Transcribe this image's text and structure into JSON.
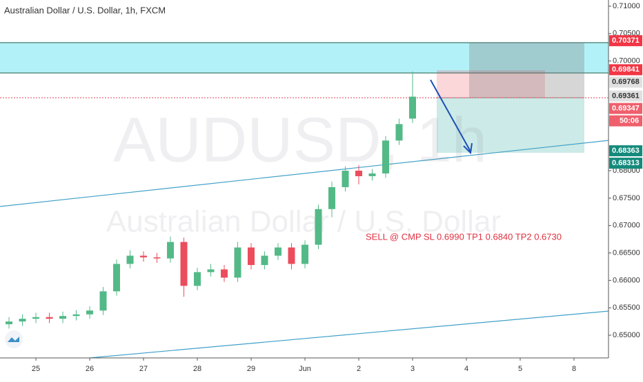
{
  "chart_data": {
    "type": "candlestick",
    "title": "Australian Dollar / U.S. Dollar, 1h, FXCM",
    "watermark": "AUDUSD, 1h",
    "watermark_subtitle": "Australian Dollar / U.S. Dollar",
    "annotation": "SELL @ CMP SL 0.6990  TP1 0.6840 TP2 0.6730",
    "countdown": "50:06",
    "up_color": "#53b987",
    "down_color": "#eb4d5c",
    "x": [
      -0.5,
      -0.25,
      0,
      0.25,
      0.5,
      0.75,
      1,
      1.25,
      1.5,
      1.75,
      2,
      2.25,
      2.5,
      2.75,
      3,
      3.25,
      3.5,
      3.75,
      4,
      4.25,
      4.5,
      4.75,
      5,
      5.25,
      5.5,
      5.75,
      6,
      6.25,
      6.5,
      6.75,
      7
    ],
    "open": [
      0.652,
      0.6525,
      0.653,
      0.6533,
      0.653,
      0.6535,
      0.6538,
      0.6545,
      0.658,
      0.663,
      0.6645,
      0.6642,
      0.664,
      0.667,
      0.659,
      0.6615,
      0.662,
      0.6605,
      0.666,
      0.6628,
      0.6645,
      0.666,
      0.663,
      0.6665,
      0.673,
      0.677,
      0.68,
      0.679,
      0.6795,
      0.6855,
      0.6895
    ],
    "high": [
      0.6533,
      0.6538,
      0.6541,
      0.6541,
      0.6543,
      0.6546,
      0.6553,
      0.6588,
      0.6638,
      0.6655,
      0.6653,
      0.665,
      0.668,
      0.6678,
      0.6623,
      0.663,
      0.6628,
      0.667,
      0.6668,
      0.6653,
      0.6668,
      0.6668,
      0.6673,
      0.6738,
      0.678,
      0.6808,
      0.681,
      0.6803,
      0.6863,
      0.6895,
      0.6981
    ],
    "low": [
      0.6512,
      0.6517,
      0.6522,
      0.6522,
      0.6522,
      0.6527,
      0.653,
      0.6537,
      0.6572,
      0.6622,
      0.6634,
      0.6632,
      0.6632,
      0.657,
      0.6582,
      0.6607,
      0.6597,
      0.6597,
      0.662,
      0.662,
      0.6637,
      0.662,
      0.6622,
      0.6657,
      0.6715,
      0.6762,
      0.6775,
      0.6782,
      0.6787,
      0.6847,
      0.6887
    ],
    "close": [
      0.6525,
      0.653,
      0.6533,
      0.653,
      0.6535,
      0.6538,
      0.6545,
      0.658,
      0.663,
      0.6645,
      0.6642,
      0.664,
      0.667,
      0.659,
      0.6615,
      0.662,
      0.6605,
      0.666,
      0.6628,
      0.6645,
      0.666,
      0.663,
      0.6665,
      0.673,
      0.677,
      0.68,
      0.679,
      0.6795,
      0.6855,
      0.6885,
      0.6935
    ],
    "xlim": [
      -0.667,
      10.641
    ],
    "xticks": [
      {
        "value": 0,
        "label": "25"
      },
      {
        "value": 1,
        "label": "26"
      },
      {
        "value": 2,
        "label": "27"
      },
      {
        "value": 3,
        "label": "28"
      },
      {
        "value": 4,
        "label": "29"
      },
      {
        "value": 5,
        "label": "Jun"
      },
      {
        "value": 6,
        "label": "2"
      },
      {
        "value": 7,
        "label": "3"
      },
      {
        "value": 8,
        "label": "4"
      },
      {
        "value": 9,
        "label": "5"
      },
      {
        "value": 10,
        "label": "8"
      }
    ],
    "ylim": [
      0.64586,
      0.71113
    ],
    "yticks": [
      {
        "value": 0.71,
        "label": "0.71000"
      },
      {
        "value": 0.705,
        "label": "0.70500"
      },
      {
        "value": 0.7,
        "label": "0.70000"
      },
      {
        "value": 0.68,
        "label": "0.68000"
      },
      {
        "value": 0.675,
        "label": "0.67500"
      },
      {
        "value": 0.67,
        "label": "0.67000"
      },
      {
        "value": 0.665,
        "label": "0.66500"
      },
      {
        "value": 0.66,
        "label": "0.66000"
      },
      {
        "value": 0.655,
        "label": "0.65500"
      },
      {
        "value": 0.65,
        "label": "0.65000"
      }
    ],
    "price_labels": [
      {
        "value": 0.70371,
        "label": "0.70371",
        "color": "#f23645"
      },
      {
        "value": 0.69841,
        "label": "0.69841",
        "color": "#f23645"
      },
      {
        "value": 0.69768,
        "label": "0.69768",
        "color": "#e0e0e0"
      },
      {
        "value": 0.69361,
        "label": "0.69361",
        "color": "#e0e0e0"
      },
      {
        "value": 0.69347,
        "label": "0.69347",
        "color": "#ef5f6c"
      },
      {
        "value": 0.68363,
        "label": "0.68363",
        "color": "#148a7c"
      },
      {
        "value": 0.68313,
        "label": "0.68313",
        "color": "#148a7c"
      }
    ]
  }
}
